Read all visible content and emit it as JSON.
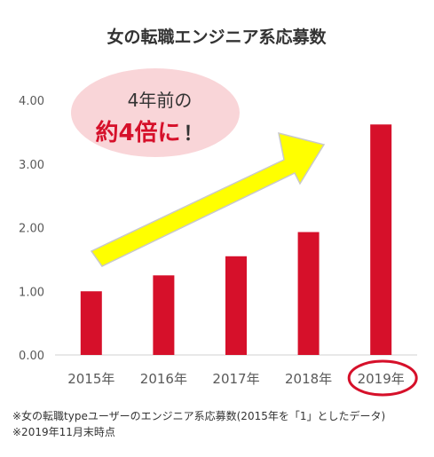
{
  "chart_data": {
    "type": "bar",
    "title": "女の転職エンジニア系応募数",
    "categories": [
      "2015年",
      "2016年",
      "2017年",
      "2018年",
      "2019年"
    ],
    "values": [
      1.0,
      1.25,
      1.55,
      1.93,
      3.62
    ],
    "y_ticks": [
      "0.00",
      "1.00",
      "2.00",
      "3.00",
      "4.00"
    ],
    "ylim": [
      0,
      4.0
    ],
    "xlabel": "",
    "ylabel": "",
    "grid": false,
    "legend": "none",
    "highlighted_category": "2019年",
    "colors": {
      "bar": "#d6102a",
      "arrow_fill": "#ffff00",
      "arrow_stroke": "#c9c9c9",
      "callout_fill": "#f9d5d8",
      "highlight_ring": "#d6102a"
    },
    "annotation": {
      "line1": "4年前の",
      "emphasis": "約4倍に",
      "suffix": "！"
    }
  },
  "footnotes": {
    "line1": "※女の転職typeユーザーのエンジニア系応募数(2015年を「1」としたデータ)",
    "line2": "※2019年11月末時点"
  }
}
